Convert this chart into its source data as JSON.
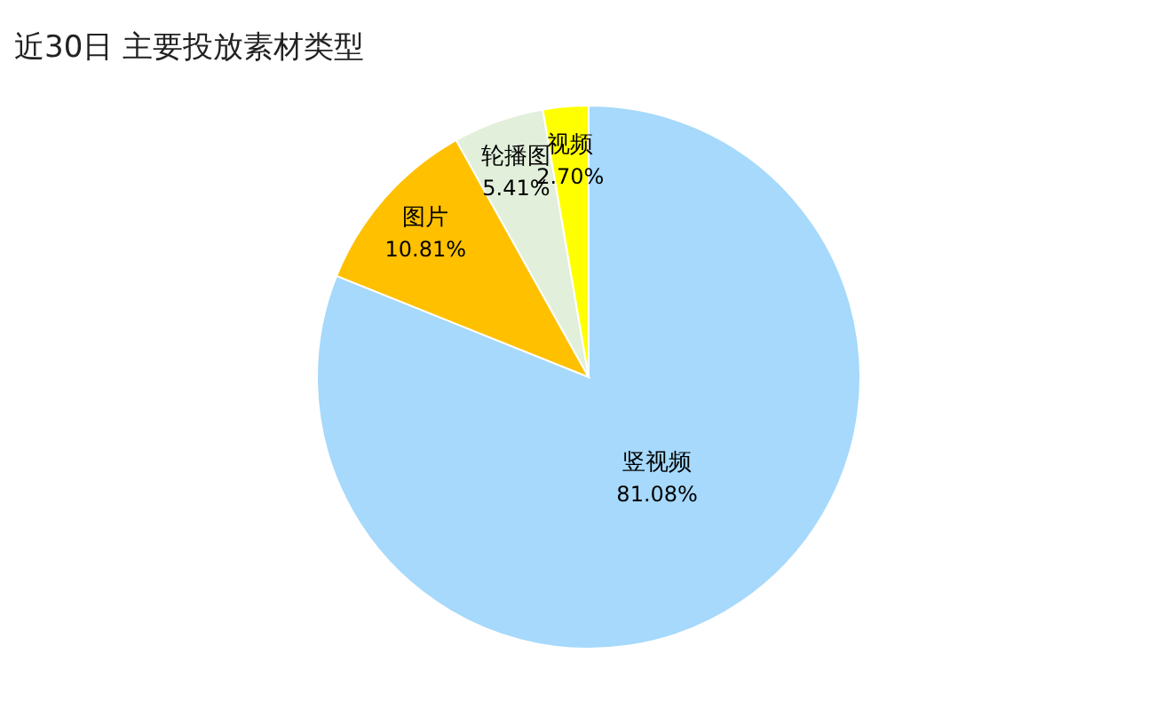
{
  "chart_data": {
    "type": "pie",
    "title": "近30日 主要投放素材类型",
    "categories": [
      "竖视频",
      "图片",
      "轮播图",
      "视频"
    ],
    "values": [
      81.08,
      10.81,
      5.41,
      2.7
    ],
    "value_labels": [
      "81.08%",
      "10.81%",
      "5.41%",
      "2.70%"
    ],
    "colors": [
      "#a6d9fb",
      "#ffc000",
      "#e2efda",
      "#ffff00"
    ],
    "legend": false
  }
}
